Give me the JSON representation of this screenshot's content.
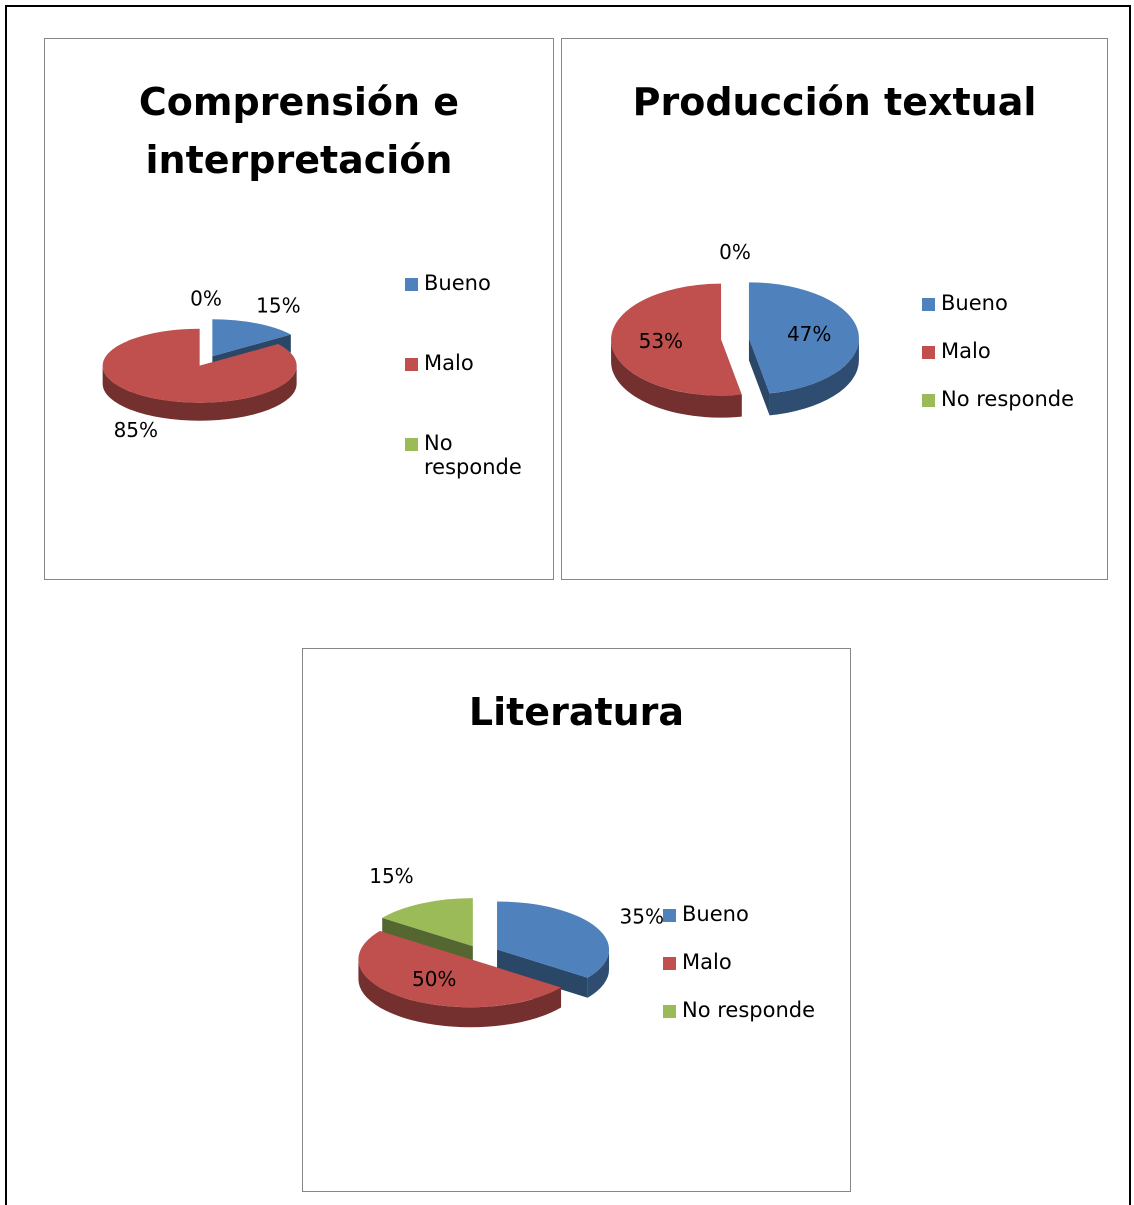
{
  "chart_data": [
    {
      "type": "pie",
      "title": "Comprensión e interpretación",
      "categories": [
        "Bueno",
        "Malo",
        "No responde"
      ],
      "values": [
        15,
        85,
        0
      ],
      "value_labels": [
        "15%",
        "85%",
        "0%"
      ],
      "colors": [
        "#4f81bd",
        "#c0504d",
        "#9bbb59"
      ],
      "legend": "right"
    },
    {
      "type": "pie",
      "title": "Producción textual",
      "categories": [
        "Bueno",
        "Malo",
        "No responde"
      ],
      "values": [
        47,
        53,
        0
      ],
      "value_labels": [
        "47%",
        "53%",
        "0%"
      ],
      "colors": [
        "#4f81bd",
        "#c0504d",
        "#9bbb59"
      ],
      "legend": "right"
    },
    {
      "type": "pie",
      "title": "Literatura",
      "categories": [
        "Bueno",
        "Malo",
        "No responde"
      ],
      "values": [
        35,
        50,
        15
      ],
      "value_labels": [
        "35%",
        "50%",
        "15%"
      ],
      "colors": [
        "#4f81bd",
        "#c0504d",
        "#9bbb59"
      ],
      "legend": "right"
    }
  ]
}
